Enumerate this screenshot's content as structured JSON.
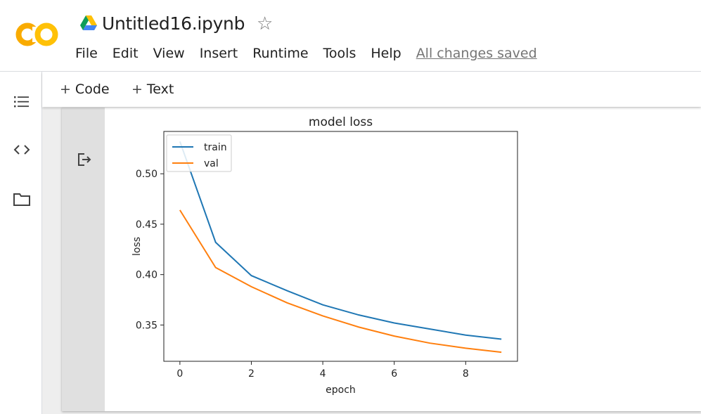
{
  "app": {
    "title": "Untitled16.ipynb",
    "logo_text": "CO",
    "save_status": "All changes saved"
  },
  "menu": [
    "File",
    "Edit",
    "View",
    "Insert",
    "Runtime",
    "Tools",
    "Help"
  ],
  "toolbar": {
    "code_label": "Code",
    "text_label": "Text",
    "plus": "+"
  },
  "sidebar": {
    "icons": [
      "table-of-contents-icon",
      "code-snippets-icon",
      "files-icon"
    ]
  },
  "colors": {
    "logo_orange": "#F9AB00",
    "logo_yellow": "#FFC107",
    "train": "#1f77b4",
    "val": "#ff7f0e"
  },
  "chart_data": {
    "type": "line",
    "title": "model loss",
    "xlabel": "epoch",
    "ylabel": "loss",
    "x": [
      0,
      1,
      2,
      3,
      4,
      5,
      6,
      7,
      8,
      9
    ],
    "series": [
      {
        "name": "train",
        "values": [
          0.532,
          0.432,
          0.399,
          0.384,
          0.37,
          0.36,
          0.352,
          0.346,
          0.34,
          0.336
        ]
      },
      {
        "name": "val",
        "values": [
          0.464,
          0.407,
          0.388,
          0.372,
          0.359,
          0.348,
          0.339,
          0.332,
          0.327,
          0.323
        ]
      }
    ],
    "xlim": [
      -0.45,
      9.45
    ],
    "ylim": [
      0.314,
      0.542
    ],
    "xticks": [
      0,
      2,
      4,
      6,
      8
    ],
    "yticks": [
      0.35,
      0.4,
      0.45,
      0.5
    ],
    "ytick_labels": [
      "0.35",
      "0.40",
      "0.45",
      "0.50"
    ],
    "legend_position": "top-left",
    "grid": false
  }
}
